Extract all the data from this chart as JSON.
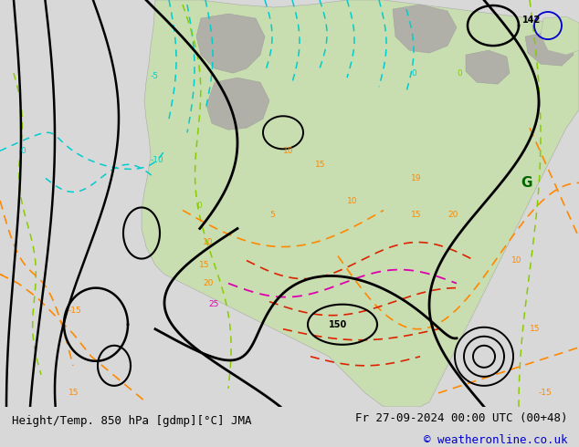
{
  "title_left": "Height/Temp. 850 hPa [gdmp][°C] JMA",
  "title_right": "Fr 27-09-2024 00:00 UTC (00+48)",
  "copyright": "© weatheronline.co.uk",
  "bg_color": "#d8d8d8",
  "land_green": "#c8ddb0",
  "land_gray": "#b0b0a8",
  "water_color": "#d8d8d8",
  "fig_width": 6.34,
  "fig_height": 4.9,
  "dpi": 100,
  "title_fontsize": 9.0,
  "copyright_color": "#0000cc"
}
